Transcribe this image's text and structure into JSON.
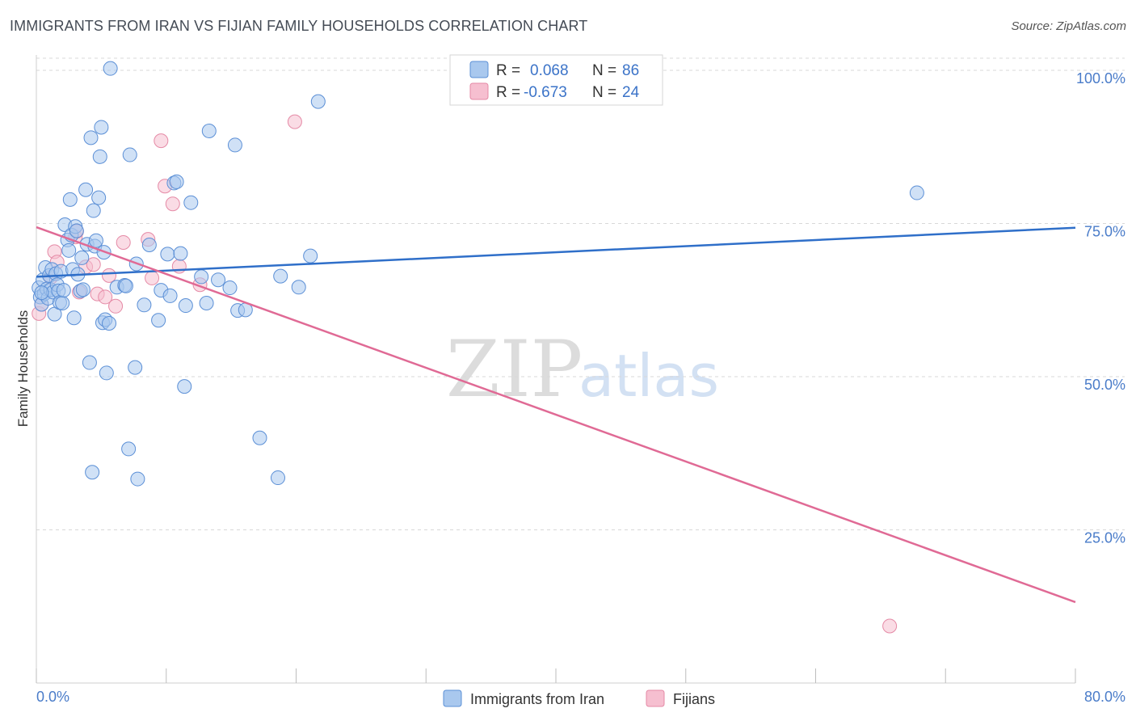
{
  "header": {
    "title": "IMMIGRANTS FROM IRAN VS FIJIAN FAMILY HOUSEHOLDS CORRELATION CHART",
    "source": "Source: ZipAtlas.com"
  },
  "watermark": {
    "zip": "ZIP",
    "atlas": "atlas"
  },
  "legend": {
    "r_label": "R =",
    "n_label": "N =",
    "iran": {
      "r": "0.068",
      "n": "86"
    },
    "fijians": {
      "r": "-0.673",
      "n": "24"
    }
  },
  "colors": {
    "iran_fill": "#a9c8ee",
    "iran_stroke": "#5b8fd6",
    "iran_line": "#2f6fc9",
    "fiji_fill": "#f6bfd0",
    "fiji_stroke": "#e58aa6",
    "fiji_line": "#e06a95",
    "tick": "#4a7cc9",
    "grid": "#d8d8d8"
  },
  "chart_data": {
    "type": "scatter",
    "title": "IMMIGRANTS FROM IRAN VS FIJIAN FAMILY HOUSEHOLDS CORRELATION CHART",
    "xlabel": "",
    "ylabel": "Family Households",
    "xlim": [
      0,
      80
    ],
    "ylim": [
      0,
      102.5
    ],
    "x_tick_labels": [
      "0.0%",
      "80.0%"
    ],
    "y_ticks": [
      25,
      50,
      75,
      100
    ],
    "y_tick_labels": [
      "25.0%",
      "50.0%",
      "75.0%",
      "100.0%"
    ],
    "grid": true,
    "legend_position": "top-center",
    "series": [
      {
        "name": "Immigrants from Iran",
        "r": 0.068,
        "n": 86,
        "trend": {
          "x": [
            0,
            80
          ],
          "y": [
            66.3,
            74.3
          ]
        },
        "points": [
          [
            0.2,
            64.5
          ],
          [
            0.3,
            63.0
          ],
          [
            0.4,
            61.8
          ],
          [
            0.5,
            65.8
          ],
          [
            0.6,
            63.5
          ],
          [
            0.7,
            67.8
          ],
          [
            0.8,
            64.3
          ],
          [
            0.9,
            62.8
          ],
          [
            1.0,
            66.5
          ],
          [
            1.1,
            64.2
          ],
          [
            1.2,
            67.5
          ],
          [
            1.3,
            63.8
          ],
          [
            1.4,
            60.2
          ],
          [
            1.5,
            66.8
          ],
          [
            1.6,
            65.0
          ],
          [
            1.7,
            64.0
          ],
          [
            1.8,
            62.1
          ],
          [
            1.9,
            67.2
          ],
          [
            2.0,
            62.0
          ],
          [
            2.1,
            64.1
          ],
          [
            2.2,
            74.8
          ],
          [
            2.4,
            72.3
          ],
          [
            2.5,
            70.6
          ],
          [
            2.6,
            78.9
          ],
          [
            2.7,
            73.1
          ],
          [
            2.8,
            67.5
          ],
          [
            2.9,
            59.6
          ],
          [
            3.0,
            74.5
          ],
          [
            3.1,
            73.8
          ],
          [
            3.2,
            66.7
          ],
          [
            3.4,
            64.0
          ],
          [
            3.5,
            69.4
          ],
          [
            3.6,
            64.2
          ],
          [
            3.8,
            80.5
          ],
          [
            3.9,
            71.6
          ],
          [
            4.1,
            52.3
          ],
          [
            4.2,
            89.0
          ],
          [
            4.3,
            34.4
          ],
          [
            4.4,
            77.1
          ],
          [
            4.5,
            71.3
          ],
          [
            4.6,
            72.2
          ],
          [
            4.8,
            79.2
          ],
          [
            4.9,
            85.9
          ],
          [
            5.0,
            90.7
          ],
          [
            5.1,
            58.8
          ],
          [
            5.2,
            70.3
          ],
          [
            5.3,
            59.3
          ],
          [
            5.4,
            50.6
          ],
          [
            5.6,
            58.7
          ],
          [
            5.7,
            100.3
          ],
          [
            6.2,
            64.6
          ],
          [
            6.8,
            64.9
          ],
          [
            6.9,
            64.8
          ],
          [
            7.1,
            38.2
          ],
          [
            7.2,
            86.2
          ],
          [
            7.6,
            51.5
          ],
          [
            7.7,
            68.4
          ],
          [
            7.8,
            33.3
          ],
          [
            8.3,
            61.7
          ],
          [
            8.7,
            71.5
          ],
          [
            9.4,
            59.2
          ],
          [
            9.6,
            64.1
          ],
          [
            10.1,
            70.0
          ],
          [
            10.3,
            63.2
          ],
          [
            10.6,
            81.6
          ],
          [
            10.8,
            81.8
          ],
          [
            11.1,
            70.1
          ],
          [
            11.4,
            48.4
          ],
          [
            11.5,
            61.6
          ],
          [
            11.9,
            78.4
          ],
          [
            12.7,
            66.3
          ],
          [
            13.1,
            62.0
          ],
          [
            13.3,
            90.1
          ],
          [
            14.0,
            65.8
          ],
          [
            14.9,
            64.5
          ],
          [
            15.3,
            87.8
          ],
          [
            15.5,
            60.8
          ],
          [
            16.1,
            60.9
          ],
          [
            17.2,
            40.0
          ],
          [
            18.6,
            33.5
          ],
          [
            18.8,
            66.4
          ],
          [
            20.2,
            64.6
          ],
          [
            21.1,
            69.7
          ],
          [
            21.7,
            94.9
          ],
          [
            67.8,
            80.0
          ],
          [
            0.4,
            63.7
          ]
        ]
      },
      {
        "name": "Fijians",
        "r": -0.673,
        "n": 24,
        "trend": {
          "x": [
            0,
            80
          ],
          "y": [
            74.4,
            13.2
          ]
        },
        "points": [
          [
            0.2,
            60.3
          ],
          [
            0.4,
            61.8
          ],
          [
            1.1,
            66.2
          ],
          [
            1.4,
            70.4
          ],
          [
            1.6,
            68.7
          ],
          [
            3.0,
            72.8
          ],
          [
            3.1,
            73.7
          ],
          [
            3.3,
            63.8
          ],
          [
            3.8,
            67.9
          ],
          [
            4.4,
            68.3
          ],
          [
            4.7,
            63.5
          ],
          [
            5.3,
            63.0
          ],
          [
            5.6,
            66.5
          ],
          [
            6.1,
            61.5
          ],
          [
            6.7,
            71.9
          ],
          [
            8.6,
            72.4
          ],
          [
            8.9,
            66.1
          ],
          [
            9.6,
            88.5
          ],
          [
            9.9,
            81.1
          ],
          [
            10.5,
            78.2
          ],
          [
            11.0,
            68.0
          ],
          [
            12.6,
            65.0
          ],
          [
            19.9,
            91.6
          ],
          [
            65.7,
            9.3
          ]
        ]
      }
    ]
  },
  "bottom_legend": {
    "iran": "Immigrants from Iran",
    "fijians": "Fijians"
  }
}
